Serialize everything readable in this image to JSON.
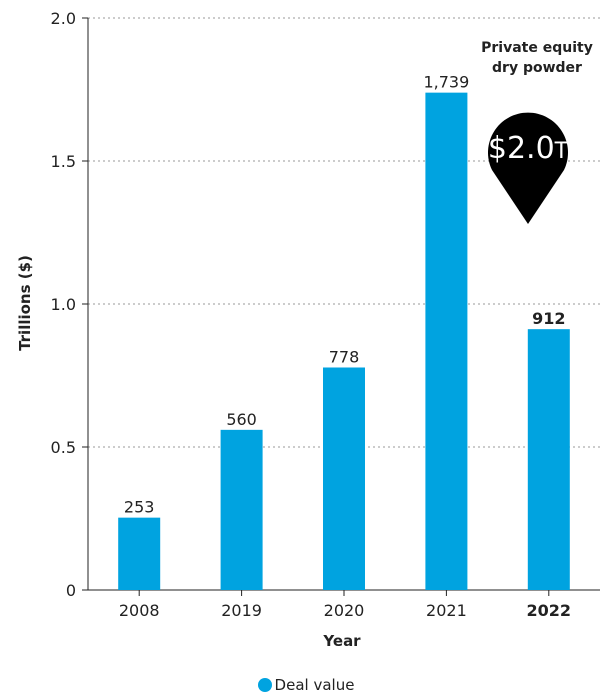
{
  "chart_data": {
    "type": "bar",
    "categories": [
      "2008",
      "2019",
      "2020",
      "2021",
      "2022"
    ],
    "values": [
      0.253,
      0.56,
      0.778,
      1.739,
      0.912
    ],
    "data_labels": [
      "253",
      "560",
      "778",
      "1,739",
      "912"
    ],
    "highlight_category": "2022",
    "xlabel": "Year",
    "ylabel": "Trillions ($)",
    "ylim": [
      0,
      2.0
    ],
    "yticks": [
      "0",
      "0.5",
      "1.0",
      "1.5",
      "2.0"
    ],
    "ytick_values": [
      0,
      0.5,
      1.0,
      1.5,
      2.0
    ],
    "grid": "horizontal dotted",
    "legend": {
      "position": "bottom-center",
      "entries": [
        "Deal value"
      ]
    },
    "series": [
      {
        "name": "Deal value",
        "color": "#00a3e0"
      }
    ],
    "callout": {
      "title_lines": [
        "Private equity",
        "dry powder"
      ],
      "value": "$2.0",
      "unit": "T",
      "color": "#000000"
    }
  }
}
